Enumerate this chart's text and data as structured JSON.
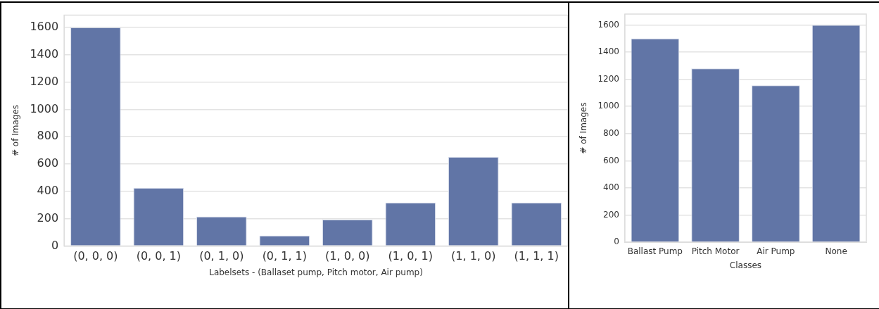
{
  "chart_data": [
    {
      "type": "bar",
      "xlabel": "Labelsets - (Ballaset pump, Pitch motor, Air pump)",
      "ylabel": "# of Images",
      "categories": [
        "(0, 0, 0)",
        "(0, 0, 1)",
        "(0, 1, 0)",
        "(0, 1, 1)",
        "(1, 0, 0)",
        "(1, 0, 1)",
        "(1, 1, 0)",
        "(1, 1, 1)"
      ],
      "values": [
        1600,
        425,
        215,
        75,
        193,
        316,
        652,
        316
      ],
      "color": "#6175a6",
      "ylim": [
        0,
        1690
      ],
      "yticks": [
        0,
        200,
        400,
        600,
        800,
        1000,
        1200,
        1400,
        1600
      ],
      "grid": "y",
      "legend": false
    },
    {
      "type": "bar",
      "xlabel": "Classes",
      "ylabel": "# of Images",
      "categories": [
        "Ballast Pump",
        "Pitch Motor",
        "Air Pump",
        "None"
      ],
      "values": [
        1500,
        1280,
        1155,
        1600
      ],
      "color": "#6175a6",
      "ylim": [
        0,
        1680
      ],
      "yticks": [
        0,
        200,
        400,
        600,
        800,
        1000,
        1200,
        1400,
        1600
      ],
      "grid": "y",
      "legend": false
    }
  ]
}
